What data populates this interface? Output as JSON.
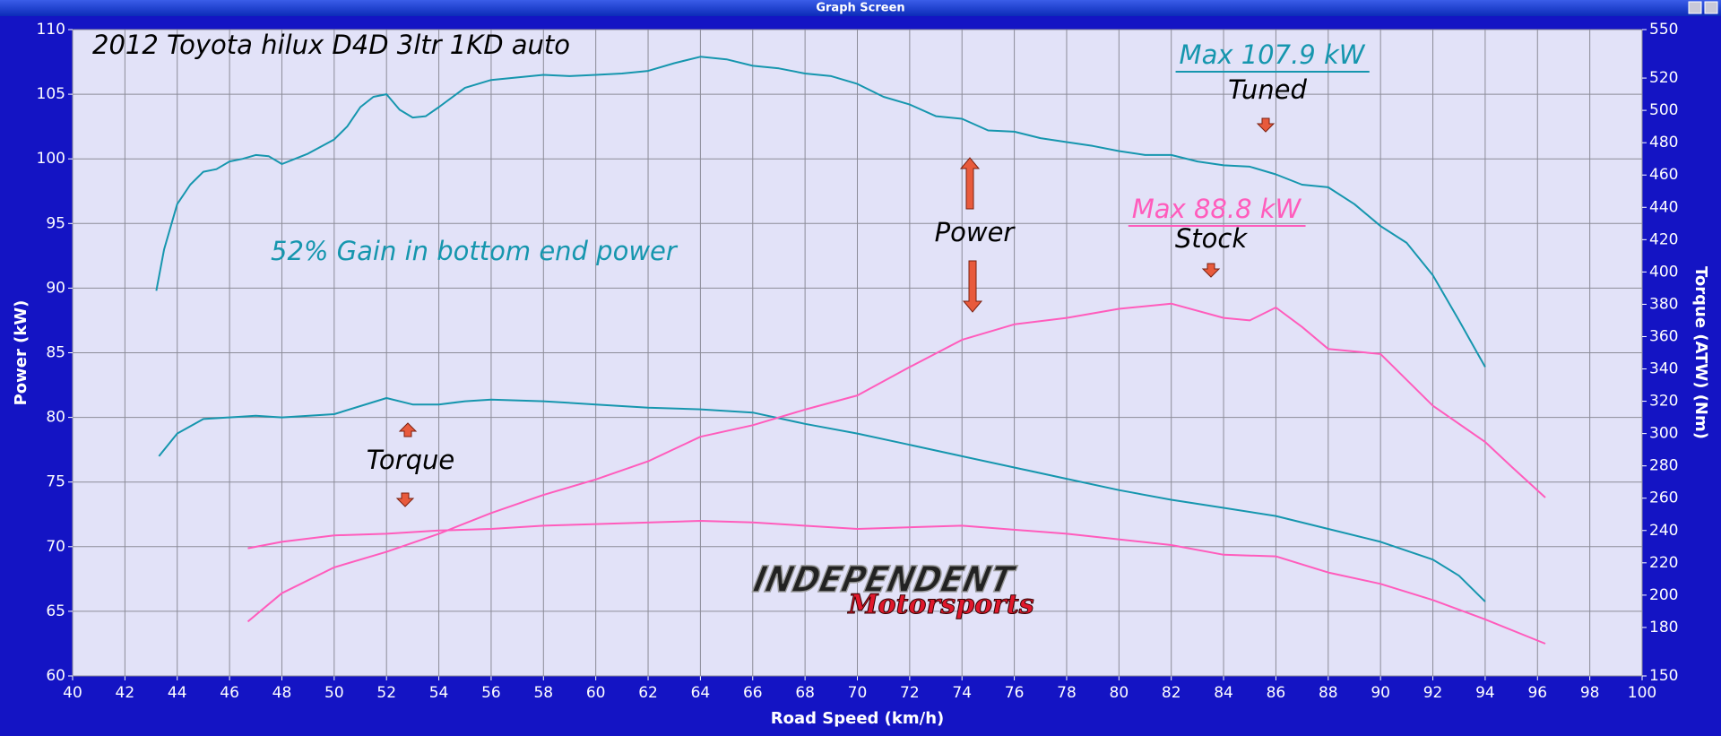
{
  "window": {
    "title": "Graph Screen"
  },
  "chart_data": {
    "type": "line",
    "title": "2012 Toyota hilux D4D 3ltr 1KD auto",
    "x_label": "Road Speed (km/h)",
    "y_label": "Power (kW)",
    "y2_label": "Torque (ATW) (Nm)",
    "xlim": [
      40,
      100
    ],
    "xticks": [
      40,
      42,
      44,
      46,
      48,
      50,
      52,
      54,
      56,
      58,
      60,
      62,
      64,
      66,
      68,
      70,
      72,
      74,
      76,
      78,
      80,
      82,
      84,
      86,
      88,
      90,
      92,
      94,
      96,
      98,
      100
    ],
    "ylim": [
      60,
      110
    ],
    "yticks": [
      60,
      65,
      70,
      75,
      80,
      85,
      90,
      95,
      100,
      105,
      110
    ],
    "y2lim": [
      150,
      550
    ],
    "y2ticks": [
      150,
      180,
      200,
      220,
      240,
      260,
      280,
      300,
      320,
      340,
      360,
      380,
      400,
      420,
      440,
      460,
      480,
      500,
      520,
      550
    ],
    "grid": true,
    "annotations": [
      "52% Gain in bottom end power",
      "Max 107.9 kW",
      "Tuned",
      "Max 88.8 kW",
      "Stock",
      "Power",
      "Torque"
    ],
    "logo": [
      "INDEPENDENT",
      "Motorsports"
    ],
    "series": [
      {
        "color": "#1696ae",
        "axis": "y",
        "x": [
          43.2,
          43.5,
          44,
          44.5,
          45,
          45.5,
          46,
          46.5,
          47,
          47.5,
          48,
          48.5,
          49,
          50,
          50.5,
          51,
          51.5,
          52,
          52.5,
          53,
          53.5,
          54,
          55,
          56,
          57,
          58,
          59,
          60,
          61,
          62,
          63,
          64,
          65,
          66,
          67,
          68,
          69,
          70,
          71,
          72,
          73,
          74,
          75,
          76,
          77,
          78,
          79,
          80,
          81,
          82,
          83,
          84,
          85,
          86,
          87,
          88,
          89,
          90,
          91,
          92,
          93,
          94
        ],
        "values": [
          89.8,
          93,
          96.5,
          98,
          99,
          99.2,
          99.8,
          100,
          100.3,
          100.2,
          99.6,
          100,
          100.4,
          101.5,
          102.5,
          104,
          104.8,
          105,
          103.8,
          103.2,
          103.3,
          104,
          105.5,
          106.1,
          106.3,
          106.5,
          106.4,
          106.5,
          106.6,
          106.8,
          107.4,
          107.9,
          107.7,
          107.2,
          107,
          106.6,
          106.4,
          105.8,
          104.8,
          104.2,
          103.3,
          103.1,
          102.2,
          102.1,
          101.6,
          101.3,
          101,
          100.6,
          100.3,
          100.3,
          99.8,
          99.5,
          99.4,
          98.8,
          98,
          97.8,
          96.5,
          94.8,
          93.5,
          91,
          87.5,
          83.9
        ]
      },
      {
        "color": "#1696ae",
        "axis": "y2",
        "x": [
          43.3,
          44,
          45,
          46,
          47,
          48,
          50,
          52,
          53,
          54,
          55,
          56,
          58,
          60,
          62,
          64,
          66,
          68,
          70,
          72,
          74,
          76,
          78,
          80,
          82,
          84,
          86,
          88,
          90,
          92,
          93,
          94
        ],
        "values": [
          286,
          300,
          309,
          310,
          311,
          310,
          312,
          322,
          318,
          318,
          320,
          321,
          320,
          318,
          316,
          315,
          313,
          306,
          300,
          293,
          286,
          279,
          272,
          265,
          259,
          254,
          249,
          241,
          233,
          222,
          212,
          196
        ]
      },
      {
        "color": "#ff5cbc",
        "axis": "y",
        "x": [
          46.7,
          48,
          50,
          52,
          54,
          56,
          58,
          60,
          62,
          64,
          66,
          68,
          70,
          72,
          74,
          76,
          78,
          80,
          82,
          84,
          85,
          86,
          87,
          88,
          90,
          92,
          94,
          95,
          96.3
        ],
        "values": [
          64.2,
          66.4,
          68.4,
          69.6,
          71,
          72.6,
          74,
          75.2,
          76.6,
          78.5,
          79.4,
          80.6,
          81.7,
          83.9,
          86,
          87.2,
          87.7,
          88.4,
          88.8,
          87.7,
          87.5,
          88.5,
          87,
          85.3,
          84.9,
          80.9,
          78.1,
          76.2,
          73.8
        ]
      },
      {
        "color": "#ff5cbc",
        "axis": "y2",
        "x": [
          46.7,
          48,
          50,
          52,
          54,
          56,
          58,
          60,
          64,
          66,
          70,
          74,
          78,
          82,
          84,
          86,
          88,
          90,
          92,
          94,
          96.3
        ],
        "values": [
          229,
          233,
          237,
          238,
          240,
          241,
          243,
          244,
          246,
          245,
          241,
          243,
          238,
          231,
          225,
          224,
          214,
          207,
          197,
          185,
          170
        ]
      }
    ]
  }
}
